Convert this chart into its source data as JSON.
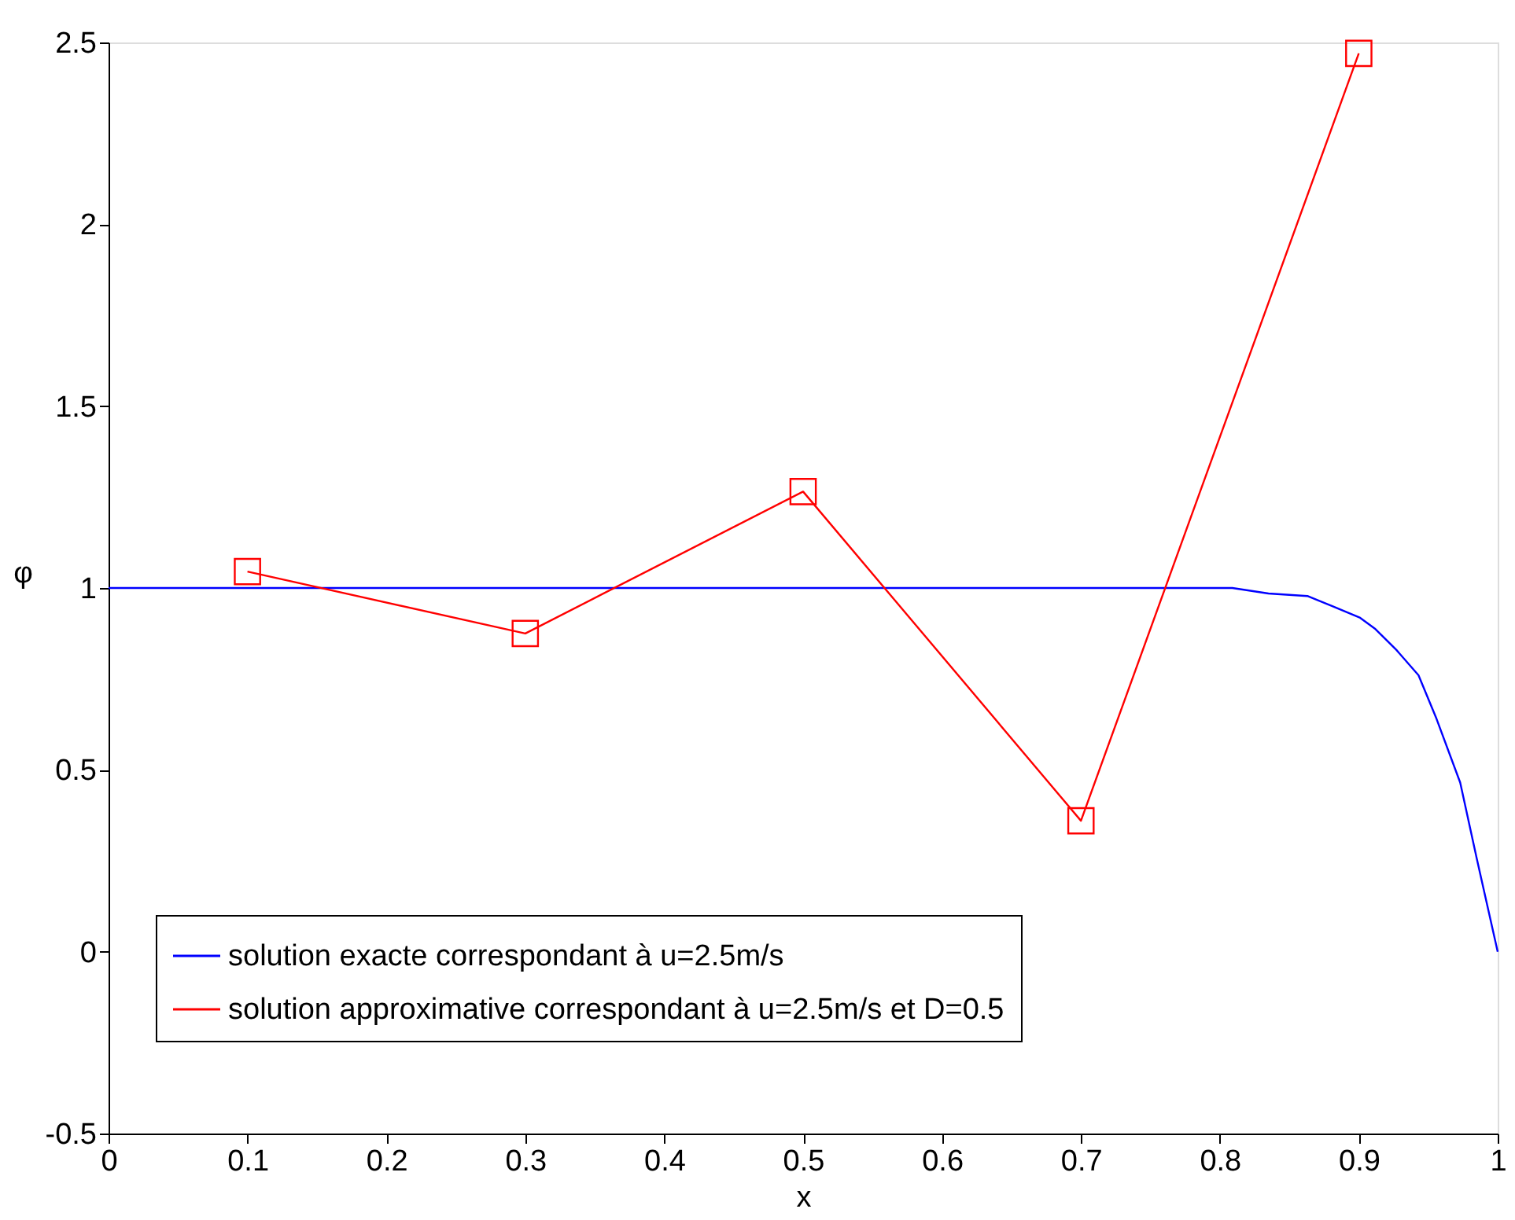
{
  "chart_data": {
    "type": "line",
    "xlabel": "x",
    "ylabel": "φ",
    "xlim": [
      0,
      1
    ],
    "ylim": [
      -0.5,
      2.5
    ],
    "xticks": [
      0,
      0.1,
      0.2,
      0.3,
      0.4,
      0.5,
      0.6,
      0.7,
      0.8,
      0.9,
      1
    ],
    "yticks": [
      -0.5,
      0,
      0.5,
      1,
      1.5,
      2,
      2.5
    ],
    "grid": false,
    "legend": "bottom",
    "series": [
      {
        "name": "solution exacte correspondant à u=2.5m/s",
        "color": "#0000ff",
        "marker": "none",
        "x": [
          0,
          0.786,
          0.809,
          0.835,
          0.863,
          0.881,
          0.901,
          0.912,
          0.927,
          0.943,
          0.956,
          0.973,
          0.985,
          1.0
        ],
        "values": [
          1,
          1,
          1,
          0.985,
          0.978,
          0.95,
          0.918,
          0.887,
          0.83,
          0.76,
          0.64,
          0.465,
          0.255,
          0
        ]
      },
      {
        "name": "solution approximative correspondant à u=2.5m/s et D=0.5",
        "color": "#ff0000",
        "marker": "square",
        "x": [
          0.1,
          0.3,
          0.5,
          0.7,
          0.9
        ],
        "values": [
          1.045,
          0.875,
          1.265,
          0.36,
          2.47
        ]
      }
    ]
  }
}
